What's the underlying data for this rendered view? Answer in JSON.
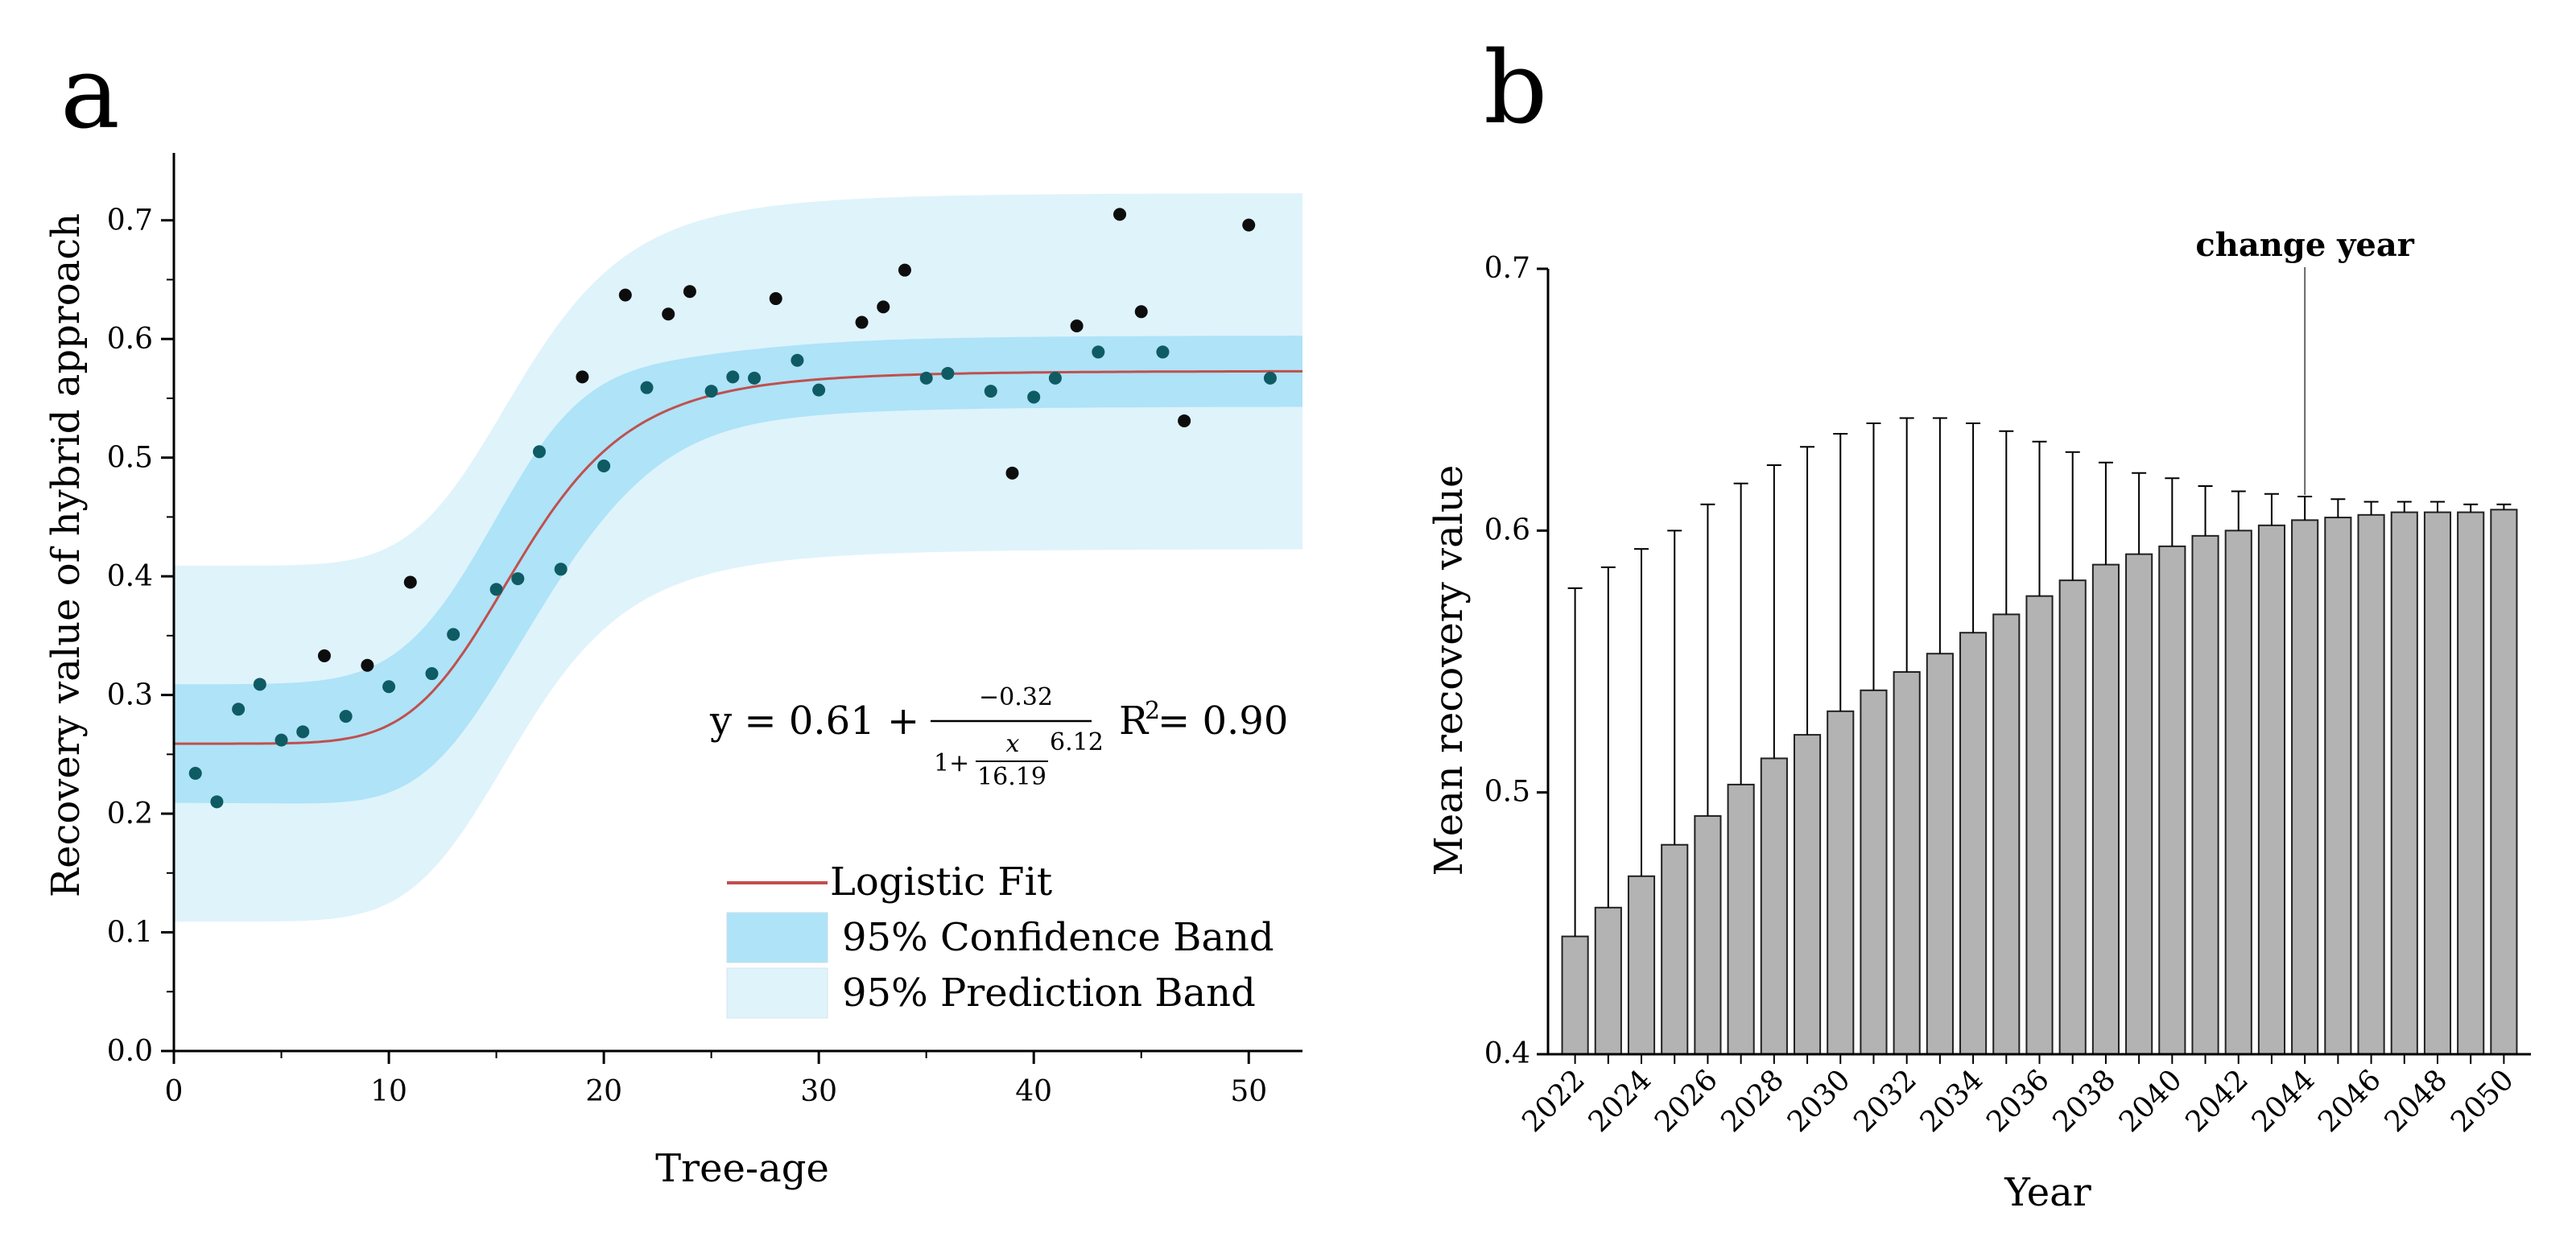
{
  "chart_data": [
    {
      "panel": "a",
      "type": "scatter",
      "xlabel": "Tree-age",
      "ylabel": "Recovery value of hybrid approach",
      "xlim": [
        0,
        52.5
      ],
      "ylim": [
        0,
        0.75
      ],
      "xticks": [
        0,
        10,
        20,
        30,
        40,
        50
      ],
      "xtick_labels": [
        "0",
        "10",
        "20",
        "30",
        "40",
        "50"
      ],
      "yticks": [
        0.0,
        0.1,
        0.2,
        0.3,
        0.4,
        0.5,
        0.6,
        0.7
      ],
      "ytick_labels": [
        "0.0",
        "0.1",
        "0.2",
        "0.3",
        "0.4",
        "0.5",
        "0.6",
        "0.7"
      ],
      "fit": {
        "name": "Logistic Fit",
        "A2": 0.61,
        "A1_minus_A2": -0.32,
        "x0": 16.19,
        "p": 6.12,
        "plateau": 0.573,
        "color": "#c0504d"
      },
      "confidence_band": {
        "name": "95% Confidence Band",
        "half_width_low": 0.05,
        "half_width_mid": 0.07,
        "half_width_high": 0.03,
        "color": "#aee3f8"
      },
      "prediction_band": {
        "name": "95% Prediction Band",
        "half_width": 0.15,
        "color": "#dff3fb"
      },
      "points": [
        {
          "x": 1,
          "y": 0.234
        },
        {
          "x": 2,
          "y": 0.21
        },
        {
          "x": 3,
          "y": 0.288
        },
        {
          "x": 4,
          "y": 0.309
        },
        {
          "x": 5,
          "y": 0.262
        },
        {
          "x": 6,
          "y": 0.269
        },
        {
          "x": 7,
          "y": 0.333
        },
        {
          "x": 8,
          "y": 0.282
        },
        {
          "x": 9,
          "y": 0.325
        },
        {
          "x": 10,
          "y": 0.307
        },
        {
          "x": 11,
          "y": 0.395
        },
        {
          "x": 12,
          "y": 0.318
        },
        {
          "x": 13,
          "y": 0.351
        },
        {
          "x": 15,
          "y": 0.389
        },
        {
          "x": 16,
          "y": 0.398
        },
        {
          "x": 17,
          "y": 0.505
        },
        {
          "x": 18,
          "y": 0.406
        },
        {
          "x": 19,
          "y": 0.568
        },
        {
          "x": 20,
          "y": 0.493
        },
        {
          "x": 21,
          "y": 0.637
        },
        {
          "x": 22,
          "y": 0.559
        },
        {
          "x": 23,
          "y": 0.621
        },
        {
          "x": 24,
          "y": 0.64
        },
        {
          "x": 25,
          "y": 0.556
        },
        {
          "x": 26,
          "y": 0.568
        },
        {
          "x": 27,
          "y": 0.567
        },
        {
          "x": 28,
          "y": 0.634
        },
        {
          "x": 29,
          "y": 0.582
        },
        {
          "x": 30,
          "y": 0.557
        },
        {
          "x": 32,
          "y": 0.614
        },
        {
          "x": 33,
          "y": 0.627
        },
        {
          "x": 34,
          "y": 0.658
        },
        {
          "x": 35,
          "y": 0.567
        },
        {
          "x": 36,
          "y": 0.571
        },
        {
          "x": 38,
          "y": 0.556
        },
        {
          "x": 39,
          "y": 0.487
        },
        {
          "x": 40,
          "y": 0.551
        },
        {
          "x": 41,
          "y": 0.567
        },
        {
          "x": 42,
          "y": 0.611
        },
        {
          "x": 43,
          "y": 0.589
        },
        {
          "x": 44,
          "y": 0.705
        },
        {
          "x": 45,
          "y": 0.623
        },
        {
          "x": 46,
          "y": 0.589
        },
        {
          "x": 47,
          "y": 0.531
        },
        {
          "x": 50,
          "y": 0.696
        },
        {
          "x": 51,
          "y": 0.567
        }
      ],
      "equation": {
        "lhs": "y = 0.61 +",
        "numerator": "−0.32",
        "den_one_plus": "1+",
        "den_x": "x",
        "den_divisor": "16.19",
        "exponent": "6.12",
        "r2_label": "R",
        "r2_sup": "2",
        "r2_value": "= 0.90"
      },
      "legend": [
        "Logistic Fit",
        "95% Confidence Band",
        "95% Prediction Band"
      ]
    },
    {
      "panel": "b",
      "type": "bar",
      "xlabel": "Year",
      "ylabel": "Mean recovery value",
      "ylim": [
        0.4,
        0.7
      ],
      "yticks": [
        0.4,
        0.5,
        0.6,
        0.7
      ],
      "ytick_labels": [
        "0.4",
        "0.5",
        "0.6",
        "0.7"
      ],
      "categories": [
        2022,
        2023,
        2024,
        2025,
        2026,
        2027,
        2028,
        2029,
        2030,
        2031,
        2032,
        2033,
        2034,
        2035,
        2036,
        2037,
        2038,
        2039,
        2040,
        2041,
        2042,
        2043,
        2044,
        2045,
        2046,
        2047,
        2048,
        2049,
        2050
      ],
      "xtick_labels": [
        "2022",
        "2024",
        "2026",
        "2028",
        "2030",
        "2032",
        "2034",
        "2036",
        "2038",
        "2040",
        "2042",
        "2044",
        "2046",
        "2048",
        "2050"
      ],
      "values": [
        0.445,
        0.456,
        0.468,
        0.48,
        0.491,
        0.503,
        0.513,
        0.522,
        0.531,
        0.539,
        0.546,
        0.553,
        0.561,
        0.568,
        0.575,
        0.581,
        0.587,
        0.591,
        0.594,
        0.598,
        0.6,
        0.602,
        0.604,
        0.605,
        0.606,
        0.607,
        0.607,
        0.607,
        0.608
      ],
      "error_upper": [
        0.578,
        0.586,
        0.593,
        0.6,
        0.61,
        0.618,
        0.625,
        0.632,
        0.637,
        0.641,
        0.643,
        0.643,
        0.641,
        0.638,
        0.634,
        0.63,
        0.626,
        0.622,
        0.62,
        0.617,
        0.615,
        0.614,
        0.613,
        0.612,
        0.611,
        0.611,
        0.611,
        0.61,
        0.61
      ],
      "bar_color": "#b3b3b3",
      "annotation": {
        "text": "change year",
        "year": 2044
      }
    }
  ]
}
